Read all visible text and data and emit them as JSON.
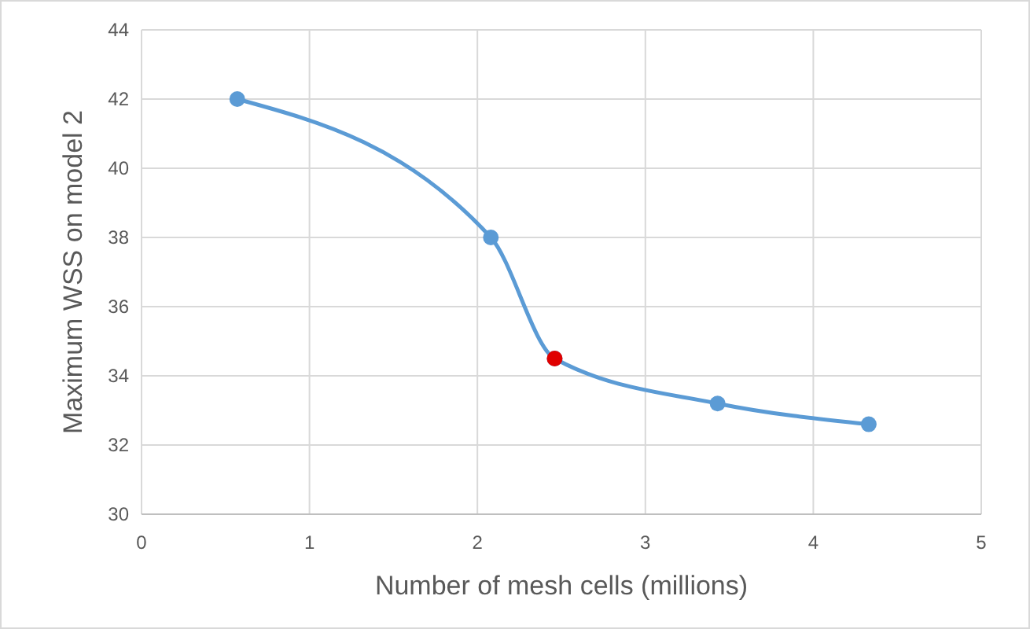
{
  "chart_data": {
    "type": "line",
    "xlabel": "Number of mesh cells (millions)",
    "ylabel": "Maximum WSS on model 2",
    "xlim": [
      0,
      5
    ],
    "xticks": [
      0,
      1,
      2,
      3,
      4,
      5
    ],
    "ylim": [
      30,
      44
    ],
    "yticks": [
      30,
      32,
      34,
      36,
      38,
      40,
      42,
      44
    ],
    "grid": true,
    "marker": "circle",
    "series": [
      {
        "color": "#5b9bd5",
        "x": [
          0.57,
          2.08,
          2.46,
          3.43,
          4.33
        ],
        "values": [
          42.0,
          38.0,
          34.5,
          33.2,
          32.6
        ]
      },
      {
        "type": "scatter",
        "color": "#e00000",
        "x": [
          2.46
        ],
        "values": [
          34.5
        ]
      }
    ]
  }
}
